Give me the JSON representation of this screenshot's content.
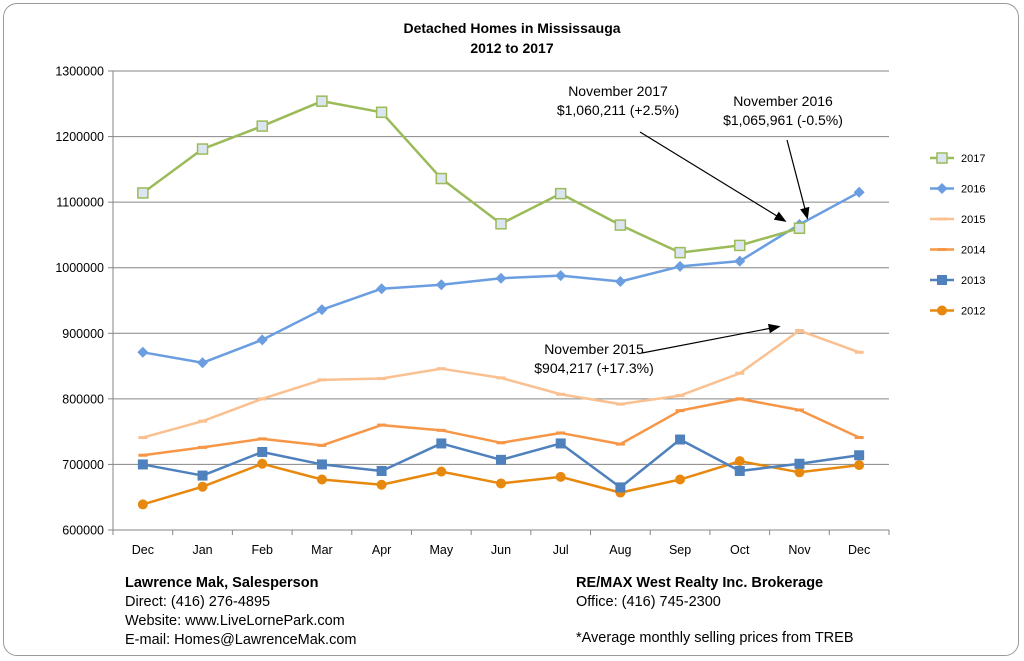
{
  "chart_data": {
    "type": "line",
    "title": [
      "Detached Homes in Mississauga",
      "2012 to 2017"
    ],
    "categories": [
      "Dec",
      "Jan",
      "Feb",
      "Mar",
      "Apr",
      "May",
      "Jun",
      "Jul",
      "Aug",
      "Sep",
      "Oct",
      "Nov",
      "Dec"
    ],
    "ylim": [
      600000,
      1300000
    ],
    "yticks": [
      "600000",
      "700000",
      "800000",
      "900000",
      "1000000",
      "1100000",
      "1200000",
      "1300000"
    ],
    "grid": true,
    "legend_position": "right",
    "series": [
      {
        "name": "2017",
        "color": "#9bbb59",
        "marker": "square-open",
        "values": [
          1114000,
          1181000,
          1216000,
          1254000,
          1237000,
          1136000,
          1067000,
          1113000,
          1065000,
          1023000,
          1034000,
          1060211,
          null
        ]
      },
      {
        "name": "2016",
        "color": "#6a9ee0",
        "marker": "diamond",
        "values": [
          871000,
          855000,
          890000,
          936000,
          968000,
          974000,
          984000,
          988000,
          979000,
          1002000,
          1010000,
          1065961,
          1115000
        ]
      },
      {
        "name": "2015",
        "color": "#fac090",
        "marker": "dash",
        "values": [
          741000,
          766000,
          800000,
          829000,
          831000,
          846000,
          832000,
          807000,
          792000,
          805000,
          839000,
          904217,
          871000
        ]
      },
      {
        "name": "2014",
        "color": "#f79646",
        "marker": "dash",
        "values": [
          714000,
          726000,
          739000,
          729000,
          760000,
          752000,
          733000,
          748000,
          731000,
          782000,
          800000,
          783000,
          741000
        ]
      },
      {
        "name": "2013",
        "color": "#4f81bd",
        "marker": "square",
        "values": [
          700000,
          683000,
          719000,
          700000,
          690000,
          732000,
          707000,
          732000,
          665000,
          738000,
          690000,
          701000,
          714000
        ]
      },
      {
        "name": "2012",
        "color": "#e8890f",
        "marker": "circle",
        "values": [
          639000,
          666000,
          701000,
          677000,
          669000,
          689000,
          671000,
          681000,
          657000,
          677000,
          705000,
          688000,
          699000
        ]
      }
    ],
    "annotations": [
      {
        "lines": [
          "November 2017",
          "$1,060,211 (+2.5%)"
        ],
        "target_series": "2017",
        "target_index": 11
      },
      {
        "lines": [
          "November 2016",
          "$1,065,961 (-0.5%)"
        ],
        "target_series": "2016",
        "target_index": 11
      },
      {
        "lines": [
          "November 2015",
          "$904,217 (+17.3%)"
        ],
        "target_series": "2015",
        "target_index": 11
      }
    ]
  },
  "footer": {
    "left": {
      "name": "Lawrence Mak, Salesperson",
      "direct": "Direct:  (416) 276-4895",
      "website": "Website:  www.LiveLornePark.com",
      "email": "E-mail:  Homes@LawrenceMak.com"
    },
    "right": {
      "brokerage": "RE/MAX West Realty Inc. Brokerage",
      "office": "Office: (416) 745-2300"
    },
    "note": "*Average monthly selling prices from TREB"
  }
}
